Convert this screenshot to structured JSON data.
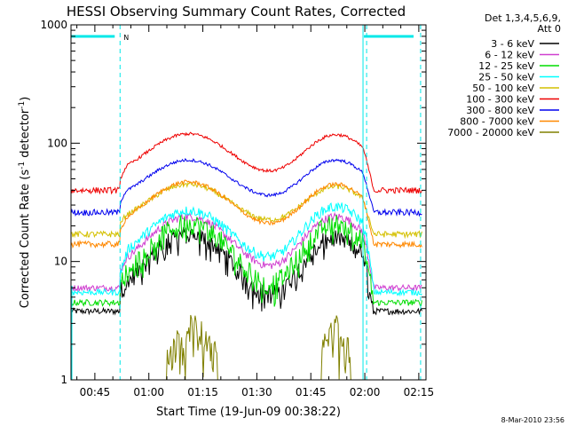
{
  "chart_data": {
    "type": "line",
    "title": "HESSI Observing Summary Count Rates, Corrected",
    "xlabel": "Start Time (19-Jun-09 00:38:22)",
    "ylabel_main": "Corrected Count Rate (s",
    "ylabel_sup1": "-1",
    "ylabel_mid": " detector",
    "ylabel_sup2": "-1",
    "ylabel_end": ")",
    "y_scale": "log",
    "ylim": [
      1,
      1000
    ],
    "xlim_minutes": [
      38.37,
      137.0
    ],
    "x_ticks": [
      {
        "label": "00:45",
        "min": 45
      },
      {
        "label": "01:00",
        "min": 60
      },
      {
        "label": "01:15",
        "min": 75
      },
      {
        "label": "01:30",
        "min": 90
      },
      {
        "label": "01:45",
        "min": 105
      },
      {
        "label": "02:00",
        "min": 120
      },
      {
        "label": "02:15",
        "min": 135
      }
    ],
    "y_ticks": [
      {
        "label": "1",
        "value": 1
      },
      {
        "label": "10",
        "value": 10
      },
      {
        "label": "100",
        "value": 100
      },
      {
        "label": "1000",
        "value": 1000
      }
    ],
    "legend_header": [
      "Det 1,3,4,5,6,9,",
      "Att 0"
    ],
    "legend_position": "right",
    "flag_label": "N",
    "footer_date": "8-Mar-2010 23:56",
    "sun_intervals": [
      [
        52.0,
        119.5
      ]
    ],
    "night_band_minutes": [
      [
        38.37,
        52.0
      ],
      [
        119.5,
        135.5
      ]
    ],
    "series": [
      {
        "name": "3 - 6 keV",
        "color": "#000000",
        "low": 3.8,
        "peak1": 17,
        "mid": 4.0,
        "peak2": 16,
        "noise": 0.18
      },
      {
        "name": "6 - 12 keV",
        "color": "#d040d0",
        "low": 6.0,
        "peak1": 24,
        "mid": 7.5,
        "peak2": 24,
        "noise": 0.08
      },
      {
        "name": "12 - 25 keV",
        "color": "#00dd00",
        "low": 4.5,
        "peak1": 21,
        "mid": 4.8,
        "peak2": 21,
        "noise": 0.2
      },
      {
        "name": "25 - 50 keV",
        "color": "#00ffff",
        "low": 5.5,
        "peak1": 27,
        "mid": 9.0,
        "peak2": 29,
        "noise": 0.1
      },
      {
        "name": "50 - 100 keV",
        "color": "#d4c000",
        "low": 17,
        "peak1": 45,
        "mid": 20,
        "peak2": 43,
        "noise": 0.05
      },
      {
        "name": "100 - 300 keV",
        "color": "#ee0000",
        "low": 40,
        "peak1": 120,
        "mid": 51,
        "peak2": 118,
        "noise": 0.03
      },
      {
        "name": "300 - 800 keV",
        "color": "#0000ee",
        "low": 26,
        "peak1": 72,
        "mid": 32,
        "peak2": 72,
        "noise": 0.03
      },
      {
        "name": "800 - 7000 keV",
        "color": "#ff8800",
        "low": 14,
        "peak1": 47,
        "mid": 18,
        "peak2": 45,
        "noise": 0.04
      },
      {
        "name": "7000 - 20000 keV",
        "color": "#808000",
        "low": 1.0,
        "peak1": 2.8,
        "mid": 1.0,
        "peak2": 2.8,
        "noise": 0.1
      }
    ]
  }
}
